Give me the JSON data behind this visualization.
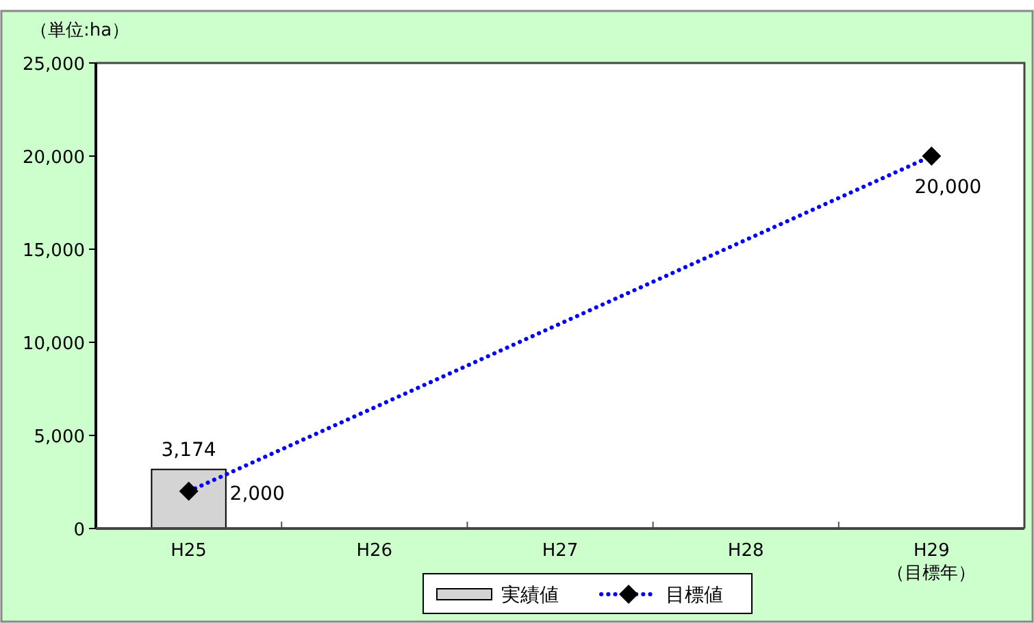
{
  "chart_data": {
    "type": "bar",
    "ylabel": "（単位:ha）",
    "categories": [
      "H25",
      "H26",
      "H27",
      "H28",
      "H29\n（目標年）"
    ],
    "series": [
      {
        "name": "実績値",
        "color": "#d4d4d4",
        "values": [
          3174,
          null,
          null,
          null,
          null
        ],
        "value_labels": [
          "3,174",
          null,
          null,
          null,
          null
        ]
      },
      {
        "name": "目標値",
        "type": "line",
        "color": "#0000ff",
        "marker": "diamond",
        "line_style": "dotted",
        "values": [
          2000,
          null,
          null,
          null,
          20000
        ],
        "value_labels": [
          "2,000",
          null,
          null,
          null,
          "20,000"
        ]
      }
    ],
    "ylim": [
      0,
      25000
    ],
    "yticks": [
      0,
      {
        "value": 5000,
        "label": "5,000"
      },
      {
        "value": 10000,
        "label": "10,000"
      },
      {
        "value": 15000,
        "label": "15,000"
      },
      {
        "value": 20000,
        "label": "20,000"
      },
      {
        "value": 25000,
        "label": "25,000"
      }
    ],
    "legend": "bottom"
  }
}
